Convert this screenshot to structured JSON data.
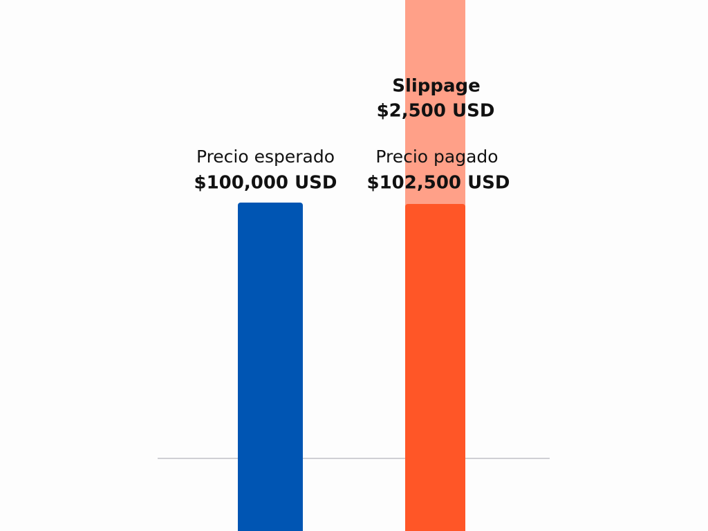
{
  "bars": [
    {
      "label": "Precio esperado",
      "value": "$100,000 USD"
    },
    {
      "label": "Precio pagado",
      "value": "$102,500 USD"
    }
  ],
  "slippage": {
    "label": "Slippage",
    "value": "$2,500 USD"
  }
}
